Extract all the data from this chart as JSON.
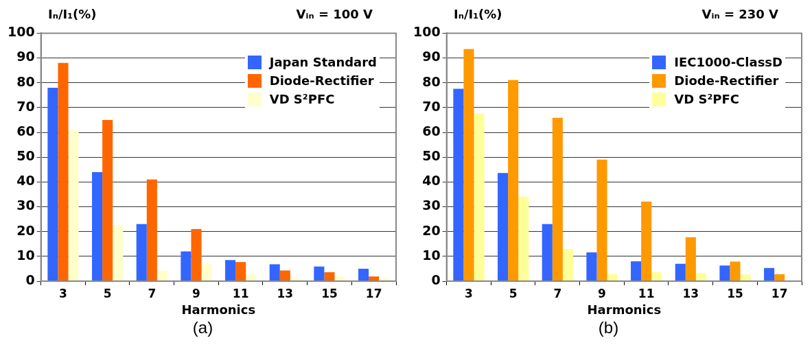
{
  "chart_data": [
    {
      "type": "bar",
      "title": "Vᵢₙ = 100 V",
      "ylabel": "Iₙ/I₁(%)",
      "xlabel": "Harmonics",
      "annotations": [
        "(a)"
      ],
      "categories": [
        "3",
        "5",
        "7",
        "9",
        "11",
        "13",
        "15",
        "17"
      ],
      "ylim": [
        0,
        100
      ],
      "yticks": [
        0,
        10,
        20,
        30,
        40,
        50,
        60,
        70,
        80,
        90,
        100
      ],
      "grid": "y",
      "legend": "top right",
      "series": [
        {
          "name": "Japan Standard",
          "color": "#3366ff",
          "values": [
            78,
            44,
            23,
            12,
            8.5,
            6.8,
            5.9,
            5
          ]
        },
        {
          "name": "Diode-Rectifier",
          "color": "#ff6600",
          "values": [
            88,
            65,
            41,
            21,
            7.7,
            4.3,
            3.6,
            1.9
          ]
        },
        {
          "name": "VD S²PFC",
          "color": "#ffffcc",
          "values": [
            61,
            22.7,
            4.2,
            6.8,
            2.8,
            1.1,
            1.9,
            1.1
          ]
        }
      ]
    },
    {
      "type": "bar",
      "title": "Vᵢₙ = 230 V",
      "ylabel": "Iₙ/I₁(%)",
      "xlabel": "Harmonics",
      "annotations": [
        "(b)"
      ],
      "categories": [
        "3",
        "5",
        "7",
        "9",
        "11",
        "13",
        "15",
        "17"
      ],
      "ylim": [
        0,
        100
      ],
      "yticks": [
        0,
        10,
        20,
        30,
        40,
        50,
        60,
        70,
        80,
        90,
        100
      ],
      "grid": "y",
      "legend": "top right",
      "series": [
        {
          "name": "IEC1000-ClassD",
          "color": "#3366ff",
          "values": [
            77.6,
            43.6,
            23,
            11.6,
            8,
            7,
            6.3,
            5.3
          ]
        },
        {
          "name": "Diode-Rectifier",
          "color": "#ff9900",
          "values": [
            93.6,
            81.1,
            65.9,
            49,
            32.1,
            17.7,
            7.9,
            2.8
          ]
        },
        {
          "name": "VD S²PFC",
          "color": "#ffff99",
          "values": [
            67.6,
            34.1,
            13,
            2.9,
            3.6,
            3.3,
            2.7,
            null
          ]
        }
      ]
    }
  ]
}
